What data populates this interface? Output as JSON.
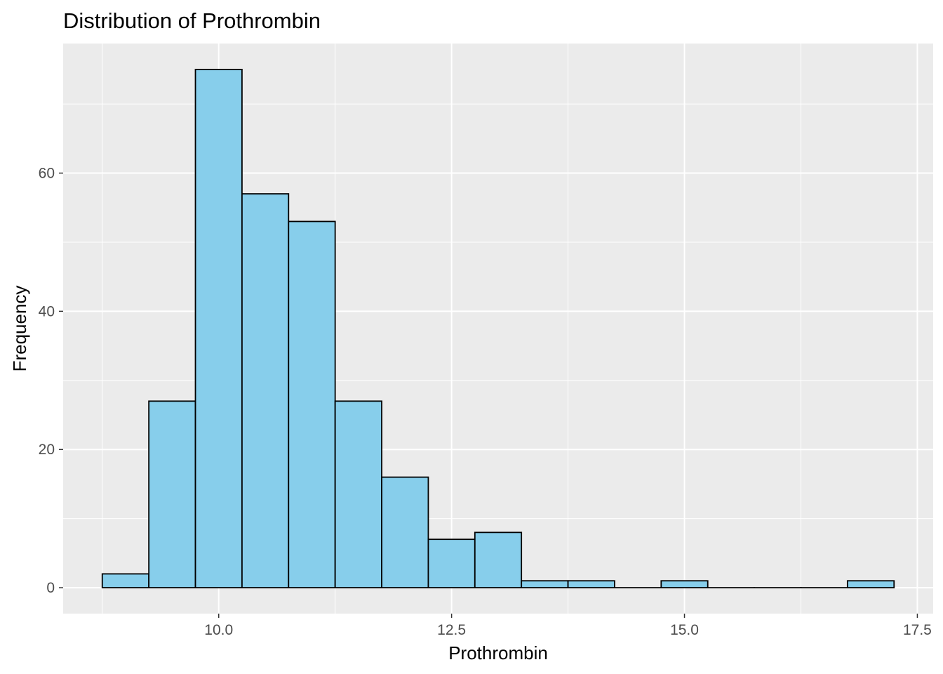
{
  "chart_data": {
    "type": "bar",
    "title": "Distribution of Prothrombin",
    "xlabel": "Prothrombin",
    "ylabel": "Frequency",
    "bin_width": 0.5,
    "bins": [
      {
        "center": 9.0,
        "count": 2
      },
      {
        "center": 9.5,
        "count": 27
      },
      {
        "center": 10.0,
        "count": 75
      },
      {
        "center": 10.5,
        "count": 57
      },
      {
        "center": 11.0,
        "count": 53
      },
      {
        "center": 11.5,
        "count": 27
      },
      {
        "center": 12.0,
        "count": 16
      },
      {
        "center": 12.5,
        "count": 7
      },
      {
        "center": 13.0,
        "count": 8
      },
      {
        "center": 13.5,
        "count": 1
      },
      {
        "center": 14.0,
        "count": 1
      },
      {
        "center": 14.5,
        "count": 0
      },
      {
        "center": 15.0,
        "count": 1
      },
      {
        "center": 15.5,
        "count": 0
      },
      {
        "center": 16.0,
        "count": 0
      },
      {
        "center": 16.5,
        "count": 0
      },
      {
        "center": 17.0,
        "count": 1
      }
    ],
    "xlim": [
      8.33,
      17.67
    ],
    "ylim": [
      -3.75,
      78.75
    ],
    "x_ticks": [
      "10.0",
      "12.5",
      "15.0",
      "17.5"
    ],
    "y_ticks": [
      "0",
      "20",
      "40",
      "60"
    ],
    "grid": true,
    "fill_color": "#87ceeb",
    "outline_color": "#000000",
    "panel_background": "#ebebeb",
    "grid_color": "#ffffff"
  }
}
